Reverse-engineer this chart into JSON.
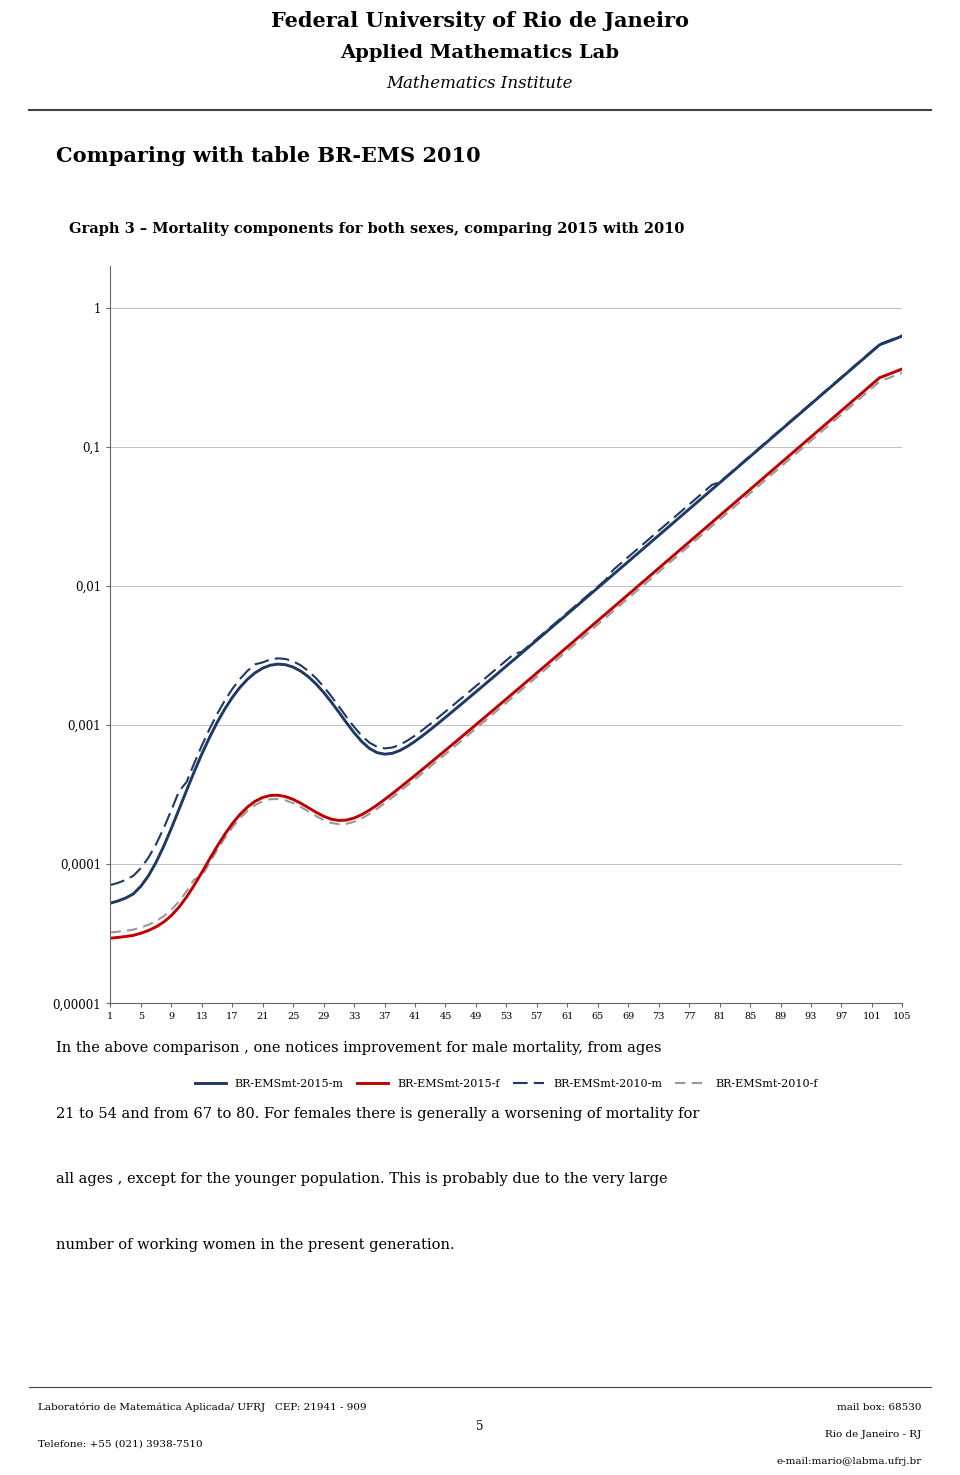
{
  "page_title": "Comparing with table BR-EMS 2010",
  "graph_title": "Graph 3 – Mortality components for both sexes, comparing 2015 with 2010",
  "header_line1": "Federal University of Rio de Janeiro",
  "header_line2": "Applied Mathematics Lab",
  "header_line3": "Mathematics Institute",
  "footer_left1": "Laboratório de Matemática Aplicada/ UFRJ   CEP: 21941 - 909",
  "footer_left2": "Telefone: +55 (021) 3938-7510",
  "footer_center": "5",
  "footer_right1": "mail box: 68530",
  "footer_right2": "Rio de Janeiro - RJ",
  "footer_right3": "e-mail:mario@labma.ufrj.br",
  "legend_labels": [
    "BR-EMSmt-2015-m",
    "BR-EMSmt-2015-f",
    "BR-EMSmt-2010-m",
    "BR-EMSmt-2010-f"
  ],
  "legend_colors": [
    "#1f3864",
    "#c00000",
    "#1f3864",
    "#808080"
  ],
  "legend_styles": [
    "solid",
    "solid",
    "dashed",
    "dashed"
  ],
  "body_text_lines": [
    "In the above comparison , one notices improvement for male mortality, from ages",
    "21 to 54 and from 67 to 80. For females there is generally a worsening of mortality for",
    "all ages , except for the younger population. This is probably due to the very large",
    "number of working women in the present generation."
  ],
  "bg_color": "#ffffff",
  "plot_bg_color": "#ffffff",
  "grid_color": "#c0c0c0",
  "ytick_labels": [
    "0,00001",
    "0,0001",
    "0,001",
    "0,01",
    "0,1",
    "1"
  ]
}
